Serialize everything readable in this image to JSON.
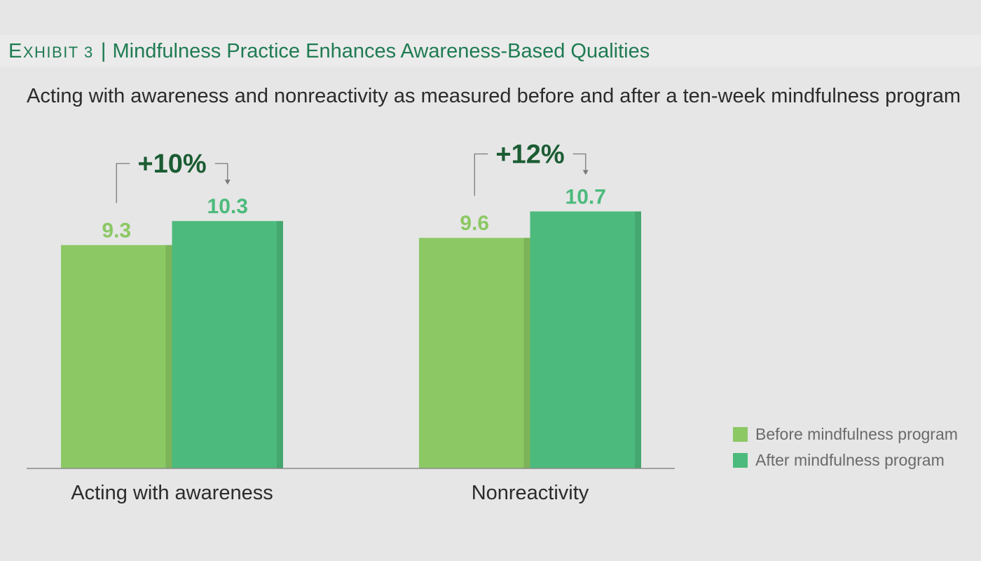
{
  "exhibit": {
    "label": "EXHIBIT 3",
    "separator": "|"
  },
  "colors": {
    "accent": "#1f7b52",
    "change": "#1b5c33",
    "axis": "#8a8a8a"
  },
  "chart_data": {
    "type": "bar",
    "title": "Mindfulness Practice Enhances Awareness-Based Qualities",
    "subtitle": "Acting with awareness and nonreactivity as measured before and after a ten-week mindfulness program",
    "categories": [
      "Acting with awareness",
      "Nonreactivity"
    ],
    "series": [
      {
        "name": "Before mindfulness program",
        "values": [
          9.3,
          9.6
        ],
        "color": "#8cc864"
      },
      {
        "name": "After mindfulness program",
        "values": [
          10.3,
          10.7
        ],
        "color": "#4cba7c"
      }
    ],
    "annotations": [
      "+10%",
      "+12%"
    ],
    "grid": false,
    "legend": "right"
  }
}
